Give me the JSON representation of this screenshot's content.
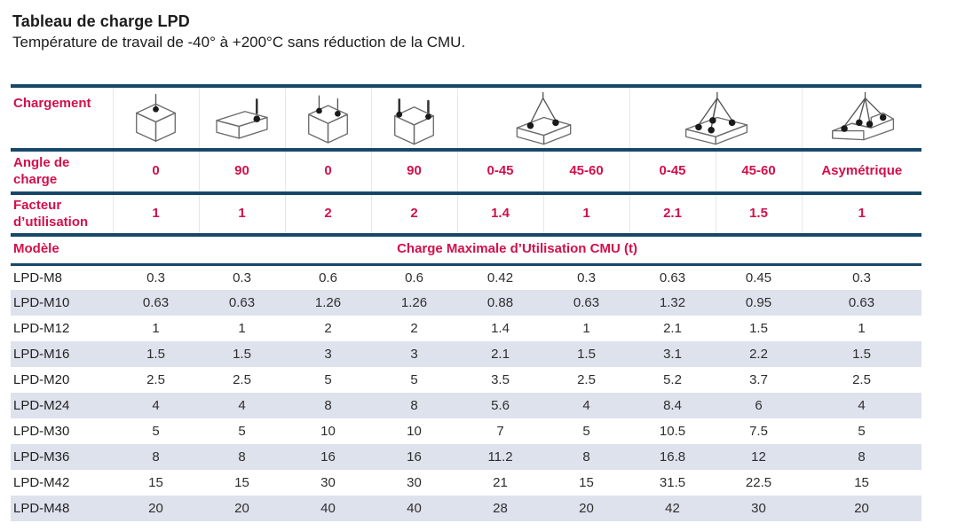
{
  "page": {
    "title": "Tableau de charge LPD",
    "subtitle": "Température de travail de -40° à +200°C sans réduction de la CMU."
  },
  "colors": {
    "accent_red": "#d2104a",
    "rule_navy": "#174768",
    "row_shade": "#dee2ed"
  },
  "table": {
    "chargement_label": "Chargement",
    "icons": [
      {
        "name": "lift-single-point-top-0deg",
        "span": 1
      },
      {
        "name": "lift-single-point-side-90deg",
        "span": 1
      },
      {
        "name": "lift-two-points-top-0deg",
        "span": 1
      },
      {
        "name": "lift-two-points-side-90deg",
        "span": 1
      },
      {
        "name": "lift-two-leg-sling-0-45-45-60",
        "span": 2
      },
      {
        "name": "lift-four-leg-sling-0-45-45-60",
        "span": 2
      },
      {
        "name": "lift-four-leg-sling-asymmetric",
        "span": 1
      }
    ],
    "angle_row": {
      "label": "Angle de charge",
      "values": [
        "0",
        "90",
        "0",
        "90",
        "0-45",
        "45-60",
        "0-45",
        "45-60",
        "Asymétrique"
      ]
    },
    "factor_row": {
      "label": "Facteur d’utilisation",
      "values": [
        "1",
        "1",
        "2",
        "2",
        "1.4",
        "1",
        "2.1",
        "1.5",
        "1"
      ]
    },
    "model_row": {
      "label": "Modèle",
      "cmu_label": "Charge Maximale d’Utilisation CMU (t)"
    },
    "rows": [
      {
        "model": "LPD-M8",
        "values": [
          "0.3",
          "0.3",
          "0.6",
          "0.6",
          "0.42",
          "0.3",
          "0.63",
          "0.45",
          "0.3"
        ]
      },
      {
        "model": "LPD-M10",
        "values": [
          "0.63",
          "0.63",
          "1.26",
          "1.26",
          "0.88",
          "0.63",
          "1.32",
          "0.95",
          "0.63"
        ]
      },
      {
        "model": "LPD-M12",
        "values": [
          "1",
          "1",
          "2",
          "2",
          "1.4",
          "1",
          "2.1",
          "1.5",
          "1"
        ]
      },
      {
        "model": "LPD-M16",
        "values": [
          "1.5",
          "1.5",
          "3",
          "3",
          "2.1",
          "1.5",
          "3.1",
          "2.2",
          "1.5"
        ]
      },
      {
        "model": "LPD-M20",
        "values": [
          "2.5",
          "2.5",
          "5",
          "5",
          "3.5",
          "2.5",
          "5.2",
          "3.7",
          "2.5"
        ]
      },
      {
        "model": "LPD-M24",
        "values": [
          "4",
          "4",
          "8",
          "8",
          "5.6",
          "4",
          "8.4",
          "6",
          "4"
        ]
      },
      {
        "model": "LPD-M30",
        "values": [
          "5",
          "5",
          "10",
          "10",
          "7",
          "5",
          "10.5",
          "7.5",
          "5"
        ]
      },
      {
        "model": "LPD-M36",
        "values": [
          "8",
          "8",
          "16",
          "16",
          "11.2",
          "8",
          "16.8",
          "12",
          "8"
        ]
      },
      {
        "model": "LPD-M42",
        "values": [
          "15",
          "15",
          "30",
          "30",
          "21",
          "15",
          "31.5",
          "22.5",
          "15"
        ]
      },
      {
        "model": "LPD-M48",
        "values": [
          "20",
          "20",
          "40",
          "40",
          "28",
          "20",
          "42",
          "30",
          "20"
        ]
      }
    ]
  }
}
